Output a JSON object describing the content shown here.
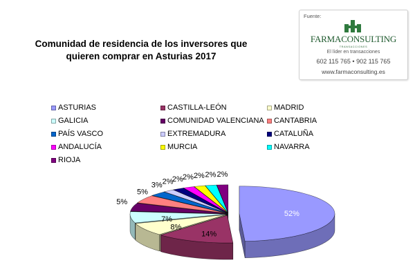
{
  "title_line1": "Comunidad de residencia de los inversores que",
  "title_line2": "quieren comprar en  Asturias 2017",
  "logo": {
    "source_label": "Fuente:",
    "brand": "FARMACONSULTING",
    "brand_sub": "TRANSACCIONES",
    "tagline": "El líder en transacciones",
    "phones": "602 115 765 •   902 115 765",
    "website": "www.farmaconsulting.es"
  },
  "chart_data": {
    "type": "pie",
    "title": "Comunidad de residencia de los inversores que quieren comprar en  Asturias 2017",
    "categories": [
      "ASTURIAS",
      "CASTILLA-LEÓN",
      "MADRID",
      "GALICIA",
      "COMUNIDAD VALENCIANA",
      "CANTABRIA",
      "PAÍS VASCO",
      "EXTREMADURA",
      "CATALUÑA",
      "ANDALUCÍA",
      "MURCIA",
      "NAVARRA",
      "RIOJA"
    ],
    "values": [
      52,
      14,
      8,
      7,
      5,
      5,
      3,
      2,
      2,
      2,
      2,
      2,
      2
    ],
    "value_labels": [
      "52%",
      "14%",
      "8%",
      "7%",
      "5%",
      "5%",
      "3%",
      "2%",
      "2%",
      "2%",
      "2%",
      "2%",
      "2%"
    ],
    "colors": [
      "#9999ff",
      "#993366",
      "#ffffcc",
      "#ccffff",
      "#660066",
      "#ff8080",
      "#0066cc",
      "#ccccff",
      "#000080",
      "#ff00ff",
      "#ffff00",
      "#00ffff",
      "#800080"
    ],
    "legend_position": "top",
    "style": "3d-exploded"
  }
}
